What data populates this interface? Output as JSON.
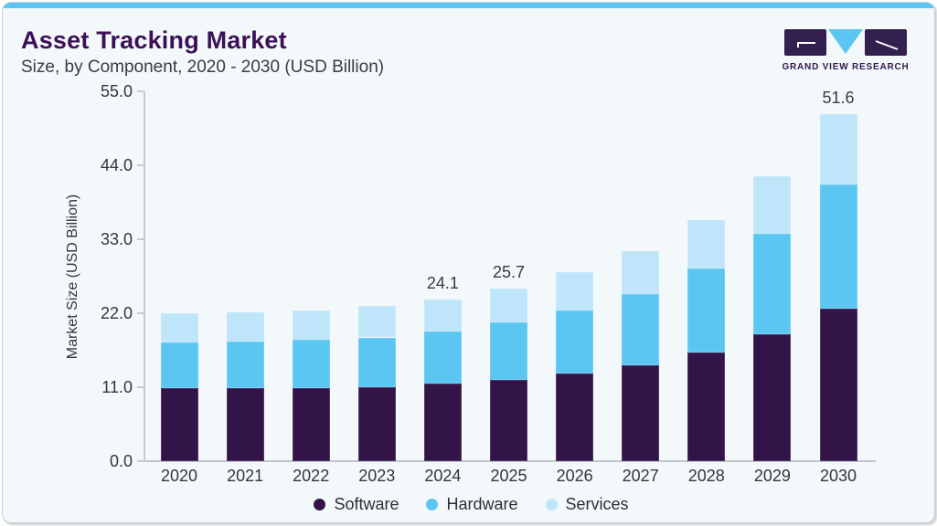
{
  "card": {
    "background": "#F3F8FB",
    "border_color": "#C7D0D7",
    "accent_color": "#5BC6F2"
  },
  "logo": {
    "text": "GRAND VIEW RESEARCH",
    "shape_dark_color": "#33204E",
    "shape_light_color": "#5BC6F2"
  },
  "chart_data": {
    "type": "bar",
    "stacked": true,
    "title": "Asset Tracking Market",
    "subtitle": "Size, by Component, 2020 - 2030 (USD Billion)",
    "ylabel": "Market Size (USD Billion)",
    "xlabel": "",
    "ylim": [
      0,
      55
    ],
    "ytick_values": [
      0,
      11,
      22,
      33,
      44,
      55
    ],
    "ytick_labels": [
      "0.0",
      "11.0",
      "22.0",
      "33.0",
      "44.0",
      "55.0"
    ],
    "grid": false,
    "legend_position": "bottom",
    "categories": [
      "2020",
      "2021",
      "2022",
      "2023",
      "2024",
      "2025",
      "2026",
      "2027",
      "2028",
      "2029",
      "2030"
    ],
    "series": [
      {
        "name": "Software",
        "color": "#331449",
        "values": [
          10.9,
          10.8,
          10.9,
          11.0,
          11.5,
          12.1,
          13.0,
          14.2,
          16.1,
          18.9,
          22.7
        ]
      },
      {
        "name": "Hardware",
        "color": "#5BC6F2",
        "values": [
          6.8,
          7.0,
          7.1,
          7.4,
          7.8,
          8.5,
          9.4,
          10.7,
          12.5,
          14.9,
          18.4
        ]
      },
      {
        "name": "Services",
        "color": "#BEE5F9",
        "values": [
          4.3,
          4.3,
          4.4,
          4.7,
          4.8,
          5.1,
          5.7,
          6.4,
          7.3,
          8.6,
          10.5
        ]
      }
    ],
    "totals": [
      22.0,
      22.1,
      22.4,
      23.1,
      24.1,
      25.7,
      28.1,
      31.3,
      35.9,
      42.4,
      51.6
    ],
    "total_labels": [
      "",
      "",
      "",
      "",
      "24.1",
      "25.7",
      "",
      "",
      "",
      "",
      "51.6"
    ]
  }
}
